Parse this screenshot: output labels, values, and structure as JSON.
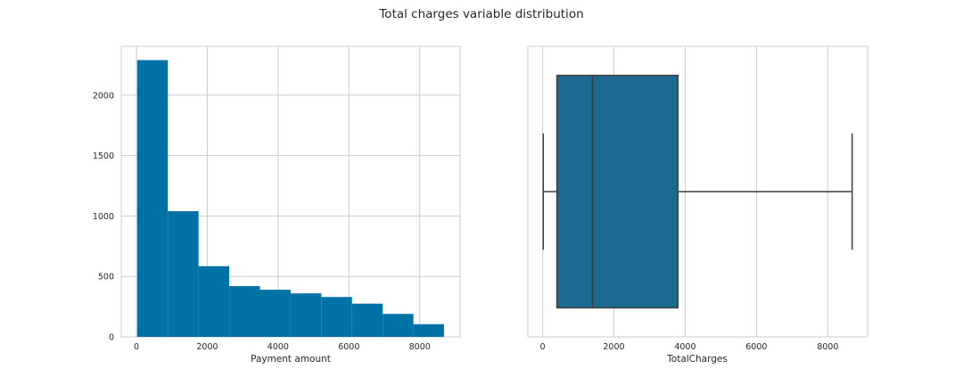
{
  "figure": {
    "title": "Total charges variable distribution",
    "colors": {
      "background": "#ffffff",
      "grid": "#cccccc",
      "spine": "#cccccc",
      "hist_bar": "#0072a6",
      "box_fill": "#1a6a92",
      "box_line": "#3d3d3d"
    }
  },
  "chart_data": [
    {
      "type": "bar",
      "subtype": "histogram",
      "xlabel": "Payment amount",
      "ylabel": "",
      "bin_edges": [
        18.8,
        885.6,
        1752.4,
        2619.2,
        3486.0,
        4352.8,
        5219.6,
        6086.4,
        6953.2,
        7820.0,
        8684.8
      ],
      "values": [
        2290,
        1040,
        585,
        420,
        390,
        360,
        330,
        275,
        190,
        105
      ],
      "xlim": [
        -430,
        9140
      ],
      "ylim": [
        0,
        2404
      ],
      "xticks": [
        0,
        2000,
        4000,
        6000,
        8000
      ],
      "xtick_labels": [
        "0",
        "2000",
        "4000",
        "6000",
        "8000"
      ],
      "yticks": [
        0,
        500,
        1000,
        1500,
        2000
      ],
      "ytick_labels": [
        "0",
        "500",
        "1000",
        "1500",
        "2000"
      ],
      "grid": true
    },
    {
      "type": "box",
      "xlabel": "TotalCharges",
      "ylabel": "",
      "whisker_low": 18.8,
      "q1": 401.4,
      "median": 1397.5,
      "q3": 3794.7,
      "whisker_high": 8684.8,
      "xlim": [
        -414,
        9118
      ],
      "xticks": [
        0,
        2000,
        4000,
        6000,
        8000
      ],
      "xtick_labels": [
        "0",
        "2000",
        "4000",
        "6000",
        "8000"
      ],
      "grid": true
    }
  ]
}
